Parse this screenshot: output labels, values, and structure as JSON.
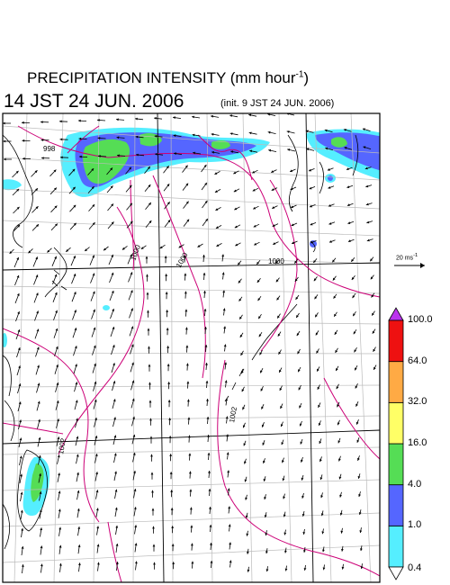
{
  "title": {
    "main": "PRECIPITATION INTENSITY (mm hour",
    "unit_exponent": "-1",
    "close": ")",
    "datetime": "14 JST 24 JUN. 2006",
    "init": "(init. 9 JST 24 JUN. 2006)"
  },
  "reference_vector": {
    "label": "20 ms",
    "exponent": "-1"
  },
  "colorbar": {
    "ticks": [
      "0.4",
      "1.0",
      "4.0",
      "16.0",
      "32.0",
      "64.0",
      "100.0"
    ],
    "colors": [
      "#55eeff",
      "#5566ff",
      "#55dd55",
      "#ffff66",
      "#ffaa44",
      "#ee1111"
    ],
    "under_color": "#ffffff",
    "over_color": "#bb33ee"
  },
  "map": {
    "contour_labels": [
      "998",
      "1000",
      "1000",
      "1000",
      "1002",
      "1002"
    ],
    "contour_color": "#cc0077",
    "coast_color": "#000000",
    "grid_color": "#bbbbbb"
  }
}
